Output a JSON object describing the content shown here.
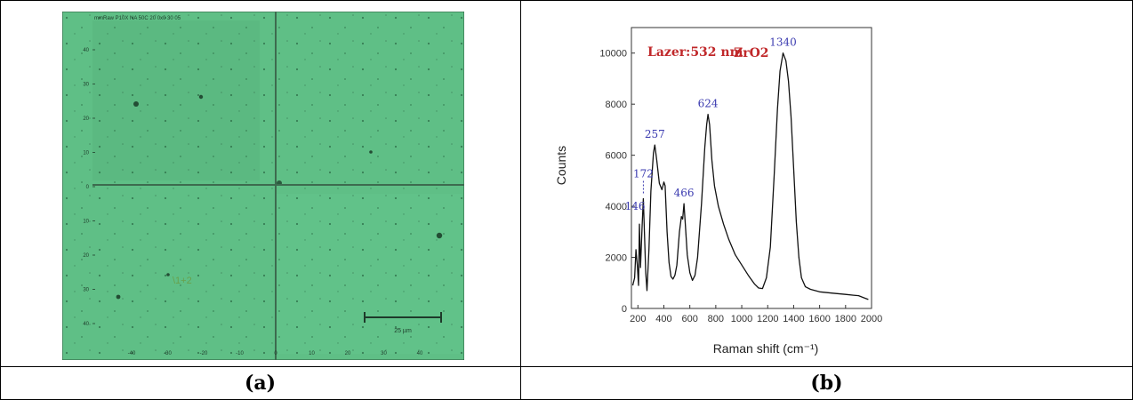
{
  "panels": [
    {
      "caption": "(a)",
      "micrograph": {
        "header": "mmRaw P10X NA 50C 20 0x0 30 05",
        "scale_bar_label": "25 µm",
        "overlay_text": "\\1+2",
        "y_ticks": [
          "40",
          "30",
          "20",
          "10",
          "0",
          "10",
          "20",
          "30",
          "40"
        ],
        "x_ticks": [
          "-40",
          "-30",
          "-20",
          "-10",
          "0",
          "10",
          "20",
          "30",
          "40"
        ],
        "colors": {
          "background": "#5fbf86",
          "crosshair": "#3d6b4f",
          "frame": "#2e5a3f"
        }
      }
    },
    {
      "caption": "(b)"
    }
  ],
  "chart_data": {
    "type": "line",
    "title": "",
    "xlabel": "Raman shift (cm⁻¹)",
    "ylabel": "Counts",
    "xlim": [
      150,
      2000
    ],
    "ylim": [
      0,
      11000
    ],
    "x_ticks": [
      200,
      400,
      600,
      800,
      1000,
      1200,
      1400,
      1600,
      1800,
      2000
    ],
    "y_ticks": [
      0,
      2000,
      4000,
      6000,
      8000,
      10000
    ],
    "grid": false,
    "legend": "none",
    "annotations": [
      {
        "text": "Lazer:532 nm",
        "color": "#c0282a"
      },
      {
        "text": "ZrO2",
        "color": "#c0282a"
      }
    ],
    "peak_labels": [
      {
        "text": "146",
        "x": 212,
        "y": 3300
      },
      {
        "text": "172",
        "x": 242,
        "y": 4300
      },
      {
        "text": "257",
        "x": 330,
        "y": 6400
      },
      {
        "text": "466",
        "x": 555,
        "y": 4100
      },
      {
        "text": "624",
        "x": 740,
        "y": 7600
      },
      {
        "text": "1340",
        "x": 1318,
        "y": 10000
      }
    ],
    "series": [
      {
        "color": "#111111",
        "points": [
          [
            160,
            900
          ],
          [
            175,
            1200
          ],
          [
            185,
            2300
          ],
          [
            195,
            1700
          ],
          [
            205,
            900
          ],
          [
            212,
            3300
          ],
          [
            220,
            1600
          ],
          [
            232,
            3200
          ],
          [
            242,
            4300
          ],
          [
            250,
            3000
          ],
          [
            260,
            1400
          ],
          [
            270,
            700
          ],
          [
            285,
            2300
          ],
          [
            300,
            4600
          ],
          [
            320,
            6100
          ],
          [
            330,
            6400
          ],
          [
            345,
            5800
          ],
          [
            365,
            4900
          ],
          [
            385,
            4650
          ],
          [
            400,
            4950
          ],
          [
            410,
            4800
          ],
          [
            425,
            3000
          ],
          [
            440,
            1800
          ],
          [
            455,
            1250
          ],
          [
            470,
            1150
          ],
          [
            485,
            1300
          ],
          [
            500,
            1700
          ],
          [
            520,
            3000
          ],
          [
            535,
            3600
          ],
          [
            545,
            3500
          ],
          [
            555,
            4100
          ],
          [
            565,
            3300
          ],
          [
            580,
            2100
          ],
          [
            600,
            1400
          ],
          [
            620,
            1100
          ],
          [
            640,
            1300
          ],
          [
            660,
            2000
          ],
          [
            690,
            4100
          ],
          [
            715,
            6300
          ],
          [
            730,
            7200
          ],
          [
            740,
            7600
          ],
          [
            752,
            7200
          ],
          [
            770,
            5800
          ],
          [
            790,
            4800
          ],
          [
            820,
            4000
          ],
          [
            860,
            3300
          ],
          [
            900,
            2700
          ],
          [
            950,
            2100
          ],
          [
            1000,
            1700
          ],
          [
            1050,
            1300
          ],
          [
            1100,
            950
          ],
          [
            1130,
            800
          ],
          [
            1160,
            780
          ],
          [
            1190,
            1200
          ],
          [
            1220,
            2400
          ],
          [
            1250,
            5200
          ],
          [
            1275,
            7800
          ],
          [
            1295,
            9300
          ],
          [
            1318,
            10000
          ],
          [
            1340,
            9700
          ],
          [
            1360,
            8900
          ],
          [
            1380,
            7500
          ],
          [
            1400,
            5500
          ],
          [
            1420,
            3400
          ],
          [
            1440,
            2000
          ],
          [
            1460,
            1200
          ],
          [
            1490,
            850
          ],
          [
            1530,
            750
          ],
          [
            1600,
            650
          ],
          [
            1700,
            600
          ],
          [
            1800,
            550
          ],
          [
            1860,
            520
          ],
          [
            1900,
            500
          ],
          [
            1950,
            400
          ],
          [
            1975,
            350
          ]
        ]
      }
    ]
  }
}
